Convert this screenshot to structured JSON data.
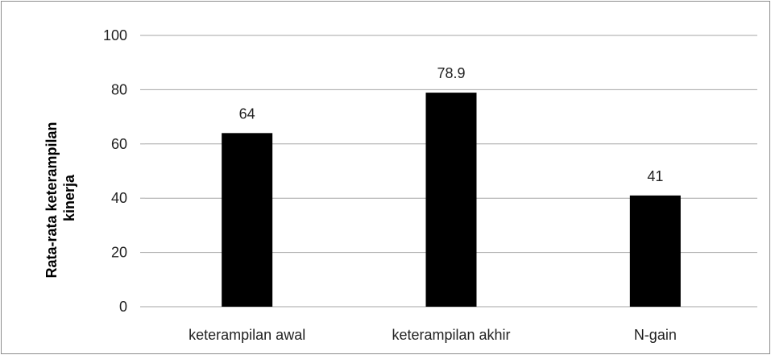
{
  "chart_data": {
    "type": "bar",
    "title": "",
    "xlabel": "",
    "ylabel_lines": [
      "Rata-rata keterampilan",
      "kinerja"
    ],
    "categories": [
      "keterampilan awal",
      "keterampilan akhir",
      "N-gain"
    ],
    "values": [
      64,
      78.9,
      41
    ],
    "value_labels": [
      "64",
      "78.9",
      "41"
    ],
    "ylim": [
      0,
      100
    ],
    "yticks": [
      0,
      20,
      40,
      60,
      80,
      100
    ],
    "grid": true,
    "legend": "none",
    "bar_color": "#000000",
    "grid_color": "#a6a6a6"
  }
}
